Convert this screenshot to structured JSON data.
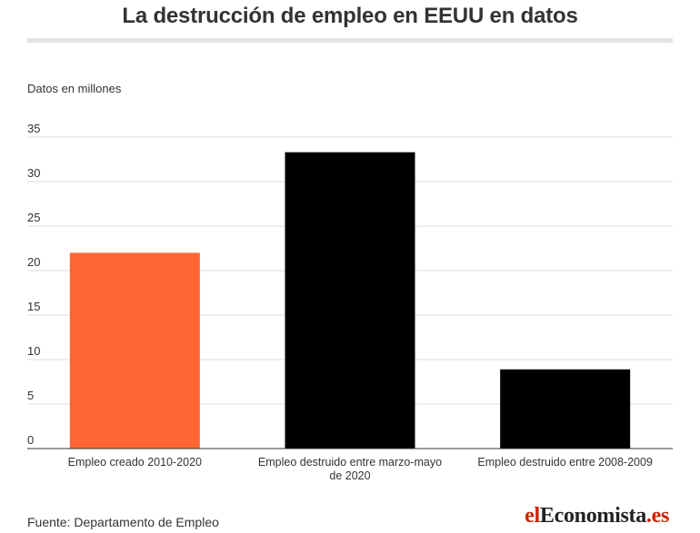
{
  "header": {
    "title": "La destrucción de empleo en EEUU en datos"
  },
  "chart_data": {
    "type": "bar",
    "title": "La destrucción de empleo en EEUU en datos",
    "ylabel": "Datos en millones",
    "xlabel": "",
    "ylim": [
      0,
      35
    ],
    "yticks": [
      0,
      5,
      10,
      15,
      20,
      25,
      30,
      35
    ],
    "categories": [
      [
        "Empleo creado 2010-2020"
      ],
      [
        "Empleo destruido entre marzo-mayo",
        "de 2020"
      ],
      [
        "Empleo destruido entre 2008-2009"
      ]
    ],
    "values": [
      22,
      33.3,
      8.9
    ],
    "colors": [
      "#ff6633",
      "#000000",
      "#000000"
    ],
    "grid": true,
    "legend": "none"
  },
  "footer": {
    "source": "Fuente: Departamento de Empleo",
    "logo": {
      "part1": "el",
      "part2": "Economista",
      "part3": ".es"
    }
  }
}
